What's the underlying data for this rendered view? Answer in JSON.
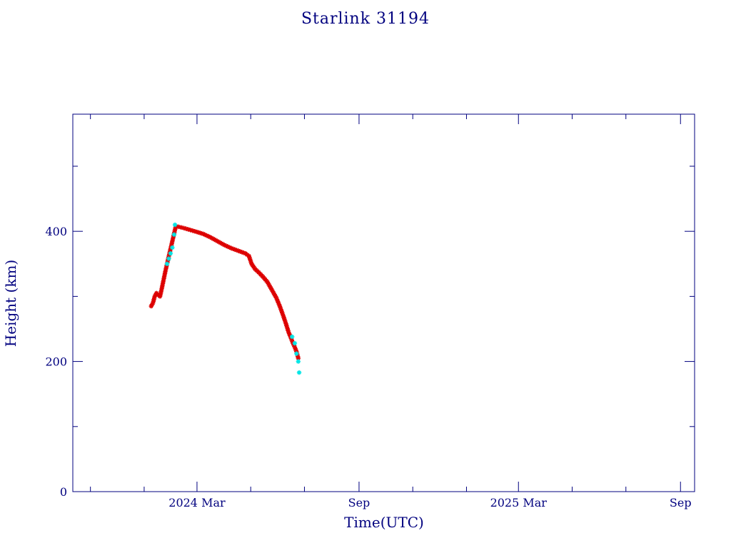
{
  "chart_data": {
    "type": "scatter",
    "title": "Starlink 31194",
    "xlabel": "Time(UTC)",
    "ylabel": "Height (km)",
    "ylim": [
      0,
      580
    ],
    "xlim": [
      "2023-10-12",
      "2025-09-17"
    ],
    "x_ticks": [
      {
        "date": "2024-03-01",
        "label": "2024 Mar"
      },
      {
        "date": "2024-09-01",
        "label": "Sep"
      },
      {
        "date": "2025-03-01",
        "label": "2025 Mar"
      },
      {
        "date": "2025-09-01",
        "label": "Sep"
      }
    ],
    "x_minor_ticks": [
      "2023-11-01",
      "2024-01-01",
      "2024-05-01",
      "2024-07-01",
      "2024-11-01",
      "2025-01-01",
      "2025-05-01",
      "2025-07-01"
    ],
    "y_ticks": [
      0,
      200,
      400
    ],
    "y_minor_ticks": [
      100,
      300,
      500
    ],
    "grid": false,
    "colors": {
      "axis": "#00007f",
      "primary": "#dd0000",
      "secondary": "#00e5e5"
    },
    "series": [
      {
        "color": "#dd0000",
        "x": [
          "2024-01-09",
          "2024-01-11",
          "2024-01-13",
          "2024-01-15",
          "2024-01-17",
          "2024-01-19",
          "2024-01-21",
          "2024-01-23",
          "2024-01-25",
          "2024-01-27",
          "2024-02-06",
          "2024-02-09",
          "2024-02-12",
          "2024-02-15",
          "2024-02-20",
          "2024-02-25",
          "2024-03-01",
          "2024-03-08",
          "2024-03-16",
          "2024-03-24",
          "2024-04-01",
          "2024-04-09",
          "2024-04-17",
          "2024-04-25",
          "2024-04-29",
          "2024-05-02",
          "2024-05-06",
          "2024-05-10",
          "2024-05-15",
          "2024-05-20",
          "2024-05-25",
          "2024-05-30",
          "2024-06-03",
          "2024-06-07",
          "2024-06-10",
          "2024-06-13",
          "2024-06-16",
          "2024-06-18",
          "2024-06-20",
          "2024-06-22",
          "2024-06-23",
          "2024-06-24"
        ],
        "y": [
          285,
          290,
          300,
          305,
          302,
          300,
          312,
          325,
          338,
          350,
          408,
          407,
          406,
          405,
          403,
          401,
          399,
          396,
          391,
          385,
          379,
          374,
          370,
          366,
          362,
          350,
          342,
          337,
          330,
          322,
          310,
          298,
          285,
          270,
          258,
          245,
          235,
          228,
          222,
          215,
          210,
          205
        ]
      },
      {
        "color": "#00e5e5",
        "x": [
          "2024-01-27",
          "2024-01-29",
          "2024-01-31",
          "2024-02-02",
          "2024-02-04",
          "2024-02-05",
          "2024-06-17",
          "2024-06-20",
          "2024-06-22",
          "2024-06-24",
          "2024-06-25"
        ],
        "y": [
          350,
          358,
          366,
          375,
          395,
          410,
          238,
          228,
          212,
          200,
          183
        ]
      }
    ]
  }
}
